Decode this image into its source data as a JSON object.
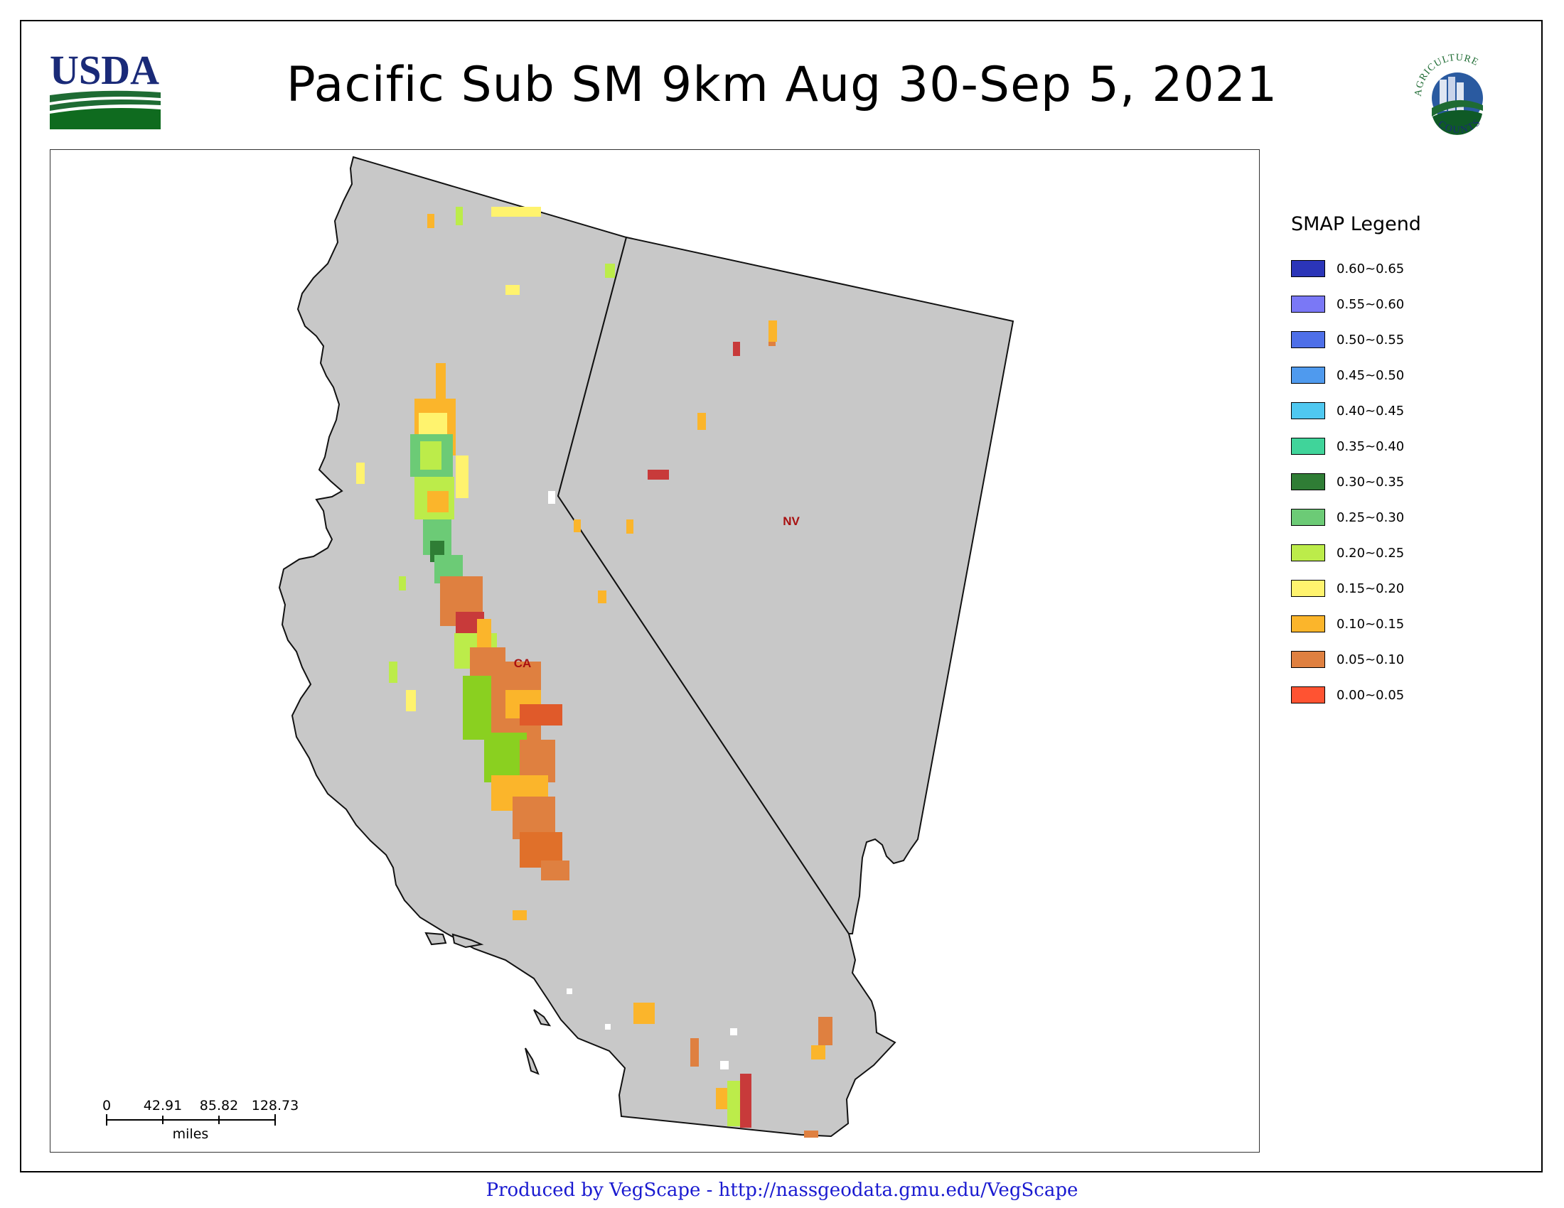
{
  "title": "Pacific Sub SM 9km Aug 30-Sep 5, 2021",
  "logos": {
    "left": "USDA",
    "right": "AGRICULTURE COUNTS"
  },
  "map": {
    "state_labels": {
      "ca": "CA",
      "nv": "NV"
    },
    "background_color": "#c8c8c8"
  },
  "legend": {
    "title": "SMAP Legend",
    "items": [
      {
        "label": "0.60~0.65",
        "color": "#2b35b8"
      },
      {
        "label": "0.55~0.60",
        "color": "#7a78f6"
      },
      {
        "label": "0.50~0.55",
        "color": "#4e6fe8"
      },
      {
        "label": "0.45~0.50",
        "color": "#4f9aee"
      },
      {
        "label": "0.40~0.45",
        "color": "#4fc8f0"
      },
      {
        "label": "0.35~0.40",
        "color": "#40d49a"
      },
      {
        "label": "0.30~0.35",
        "color": "#2f7d35"
      },
      {
        "label": "0.25~0.30",
        "color": "#6ccb76"
      },
      {
        "label": "0.20~0.25",
        "color": "#bcec4a"
      },
      {
        "label": "0.15~0.20",
        "color": "#fff36e"
      },
      {
        "label": "0.10~0.15",
        "color": "#fbb52b"
      },
      {
        "label": "0.05~0.10",
        "color": "#df8040"
      },
      {
        "label": "0.00~0.05",
        "color": "#ff5332"
      }
    ]
  },
  "scale_bar": {
    "ticks": [
      "0",
      "42.91",
      "85.82",
      "128.73"
    ],
    "unit": "miles"
  },
  "footer": "Produced by VegScape - http://nassgeodata.gmu.edu/VegScape"
}
